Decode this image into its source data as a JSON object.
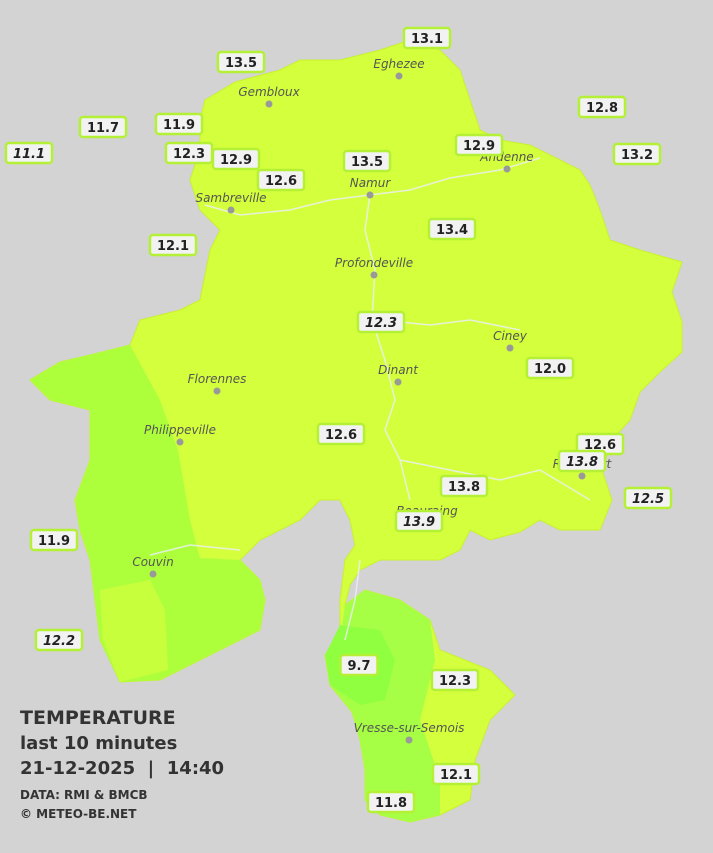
{
  "legend": {
    "title": "TEMPERATURE",
    "period": "last 10 minutes",
    "timestamp": "21-12-2025  |  14:40",
    "source": "DATA: RMI & BMCB",
    "copyright": "© METEO-BE.NET"
  },
  "cities": [
    {
      "name": "Eghezee"
    },
    {
      "name": "Gembloux"
    },
    {
      "name": "Andenne"
    },
    {
      "name": "Namur"
    },
    {
      "name": "Sambreville"
    },
    {
      "name": "Profondeville"
    },
    {
      "name": "Ciney"
    },
    {
      "name": "Florennes"
    },
    {
      "name": "Dinant"
    },
    {
      "name": "Philippeville"
    },
    {
      "name": "Rochefort"
    },
    {
      "name": "Beauraing"
    },
    {
      "name": "Couvin"
    },
    {
      "name": "Vresse-sur-Semois"
    }
  ],
  "stations": [
    {
      "value": "13.1",
      "italic": false
    },
    {
      "value": "13.5",
      "italic": false
    },
    {
      "value": "12.8",
      "italic": false
    },
    {
      "value": "11.7",
      "italic": false
    },
    {
      "value": "11.9",
      "italic": false
    },
    {
      "value": "11.1",
      "italic": true
    },
    {
      "value": "12.3",
      "italic": false
    },
    {
      "value": "12.9",
      "italic": false
    },
    {
      "value": "13.5",
      "italic": false
    },
    {
      "value": "12.9",
      "italic": false
    },
    {
      "value": "13.2",
      "italic": false
    },
    {
      "value": "12.6",
      "italic": false
    },
    {
      "value": "13.4",
      "italic": false
    },
    {
      "value": "12.1",
      "italic": false
    },
    {
      "value": "12.3",
      "italic": true
    },
    {
      "value": "12.0",
      "italic": false
    },
    {
      "value": "12.6",
      "italic": false
    },
    {
      "value": "12.6",
      "italic": false
    },
    {
      "value": "13.8",
      "italic": true
    },
    {
      "value": "12.5",
      "italic": true
    },
    {
      "value": "13.8",
      "italic": false
    },
    {
      "value": "13.9",
      "italic": true
    },
    {
      "value": "11.9",
      "italic": false
    },
    {
      "value": "12.2",
      "italic": true
    },
    {
      "value": "9.7",
      "italic": false
    },
    {
      "value": "12.3",
      "italic": false
    },
    {
      "value": "12.1",
      "italic": false
    },
    {
      "value": "11.8",
      "italic": false
    }
  ]
}
